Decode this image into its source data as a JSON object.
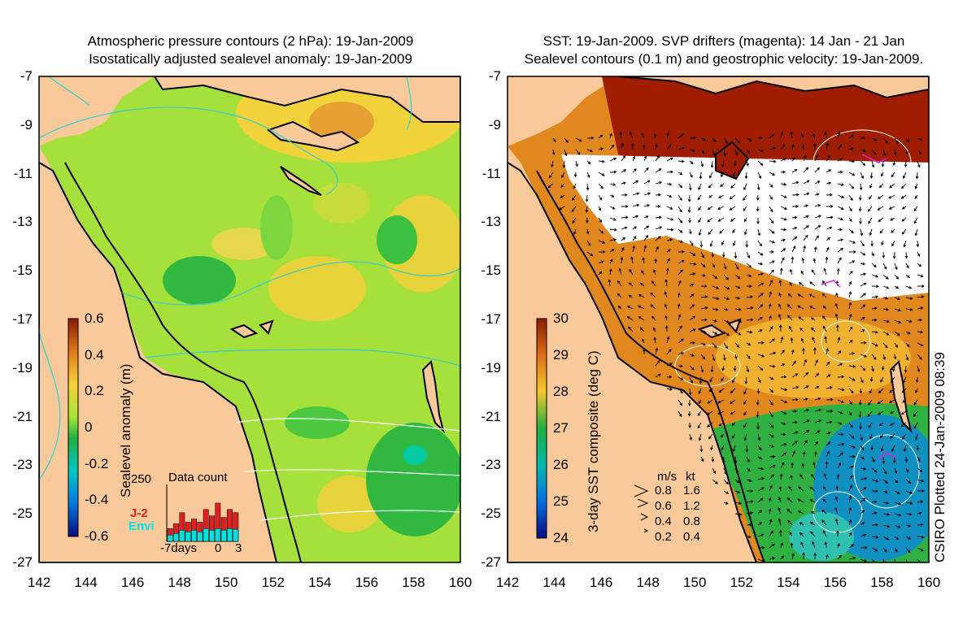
{
  "left_panel": {
    "title_line1": "Atmospheric pressure contours (2 hPa): 19-Jan-2009",
    "title_line2": "Isostatically adjusted sealevel anomaly: 19-Jan-2009",
    "colorbar_label": "Sealevel anomaly (m)",
    "colorbar_ticks": [
      "0.6",
      "0.4",
      "0.2",
      "0",
      "-0.2",
      "-0.4",
      "-0.6"
    ],
    "inset": {
      "title": "Data count",
      "y_max_label": "250",
      "legend": [
        "J-2",
        "Envi"
      ],
      "legend_colors": [
        "#e02020",
        "#00e0e0"
      ],
      "x_ticks": [
        "-7days",
        "0",
        "3"
      ],
      "bars_j2": [
        40,
        55,
        90,
        60,
        70,
        60,
        100,
        80,
        120,
        75,
        100,
        90
      ],
      "bars_envi": [
        20,
        25,
        35,
        30,
        35,
        30,
        40,
        35,
        40,
        35,
        40,
        38
      ]
    }
  },
  "right_panel": {
    "title_line1": "SST: 19-Jan-2009. SVP drifters (magenta): 14 Jan - 21 Jan",
    "title_line2": "Sealevel contours (0.1 m) and geostrophic velocity: 19-Jan-2009.",
    "colorbar_label": "3-day SST composite (deg C)",
    "colorbar_ticks": [
      "30",
      "29",
      "28",
      "27",
      "26",
      "25",
      "24"
    ],
    "velocity_legend": {
      "headers": [
        "m/s",
        "kt"
      ],
      "rows": [
        [
          "0.8",
          "1.6"
        ],
        [
          "0.6",
          "1.2"
        ],
        [
          "0.4",
          "0.8"
        ],
        [
          "0.2",
          "0.4"
        ]
      ]
    },
    "side_text": "CSIRO Plotted 24-Jan-2009 08:39"
  },
  "axes": {
    "y_ticks": [
      "-7",
      "-9",
      "-11",
      "-13",
      "-15",
      "-17",
      "-19",
      "-21",
      "-23",
      "-25",
      "-27"
    ],
    "x_ticks": [
      "142",
      "144",
      "146",
      "148",
      "150",
      "152",
      "154",
      "156",
      "158",
      "160"
    ],
    "lon_range": [
      142,
      160
    ],
    "lat_range": [
      -27,
      -7
    ]
  },
  "colors": {
    "land": "#f9c999",
    "sla_mid": "#9de23a",
    "sst_high": "#a01e00",
    "cloud": "#ffffff"
  }
}
